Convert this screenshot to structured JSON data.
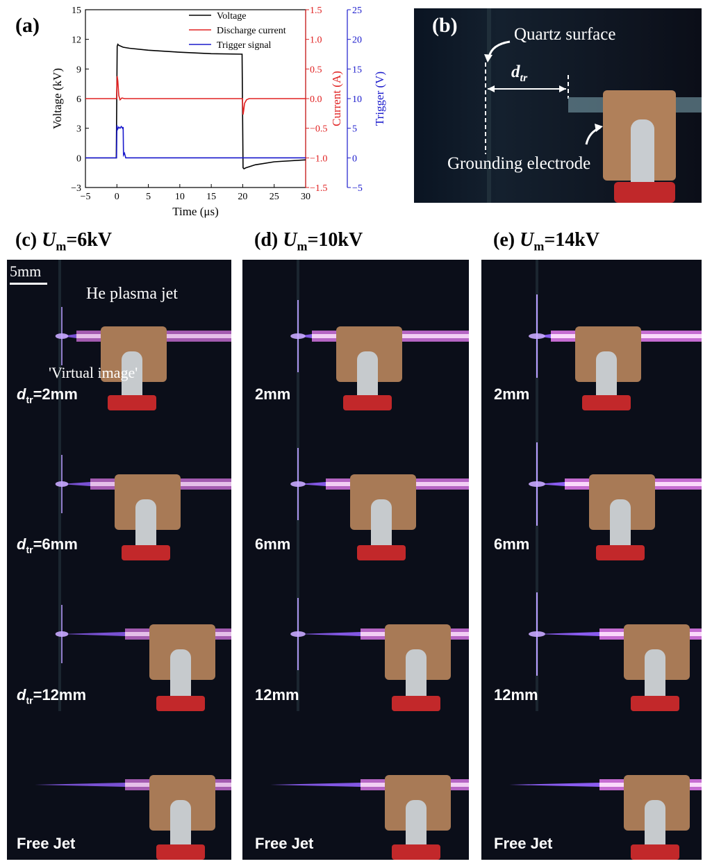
{
  "panels": {
    "a": "(a)",
    "b": "(b)",
    "c": "(c)",
    "d": "(d)",
    "e": "(e)"
  },
  "columns": [
    {
      "prefix": "U",
      "sub": "m",
      "suffix": "=6kV"
    },
    {
      "prefix": "U",
      "sub": "m",
      "suffix": "=10kV"
    },
    {
      "prefix": "U",
      "sub": "m",
      "suffix": "=14kV"
    }
  ],
  "col_c_rows": [
    {
      "d": "d",
      "sub": "tr",
      "val": "=2mm"
    },
    {
      "d": "d",
      "sub": "tr",
      "val": "=6mm"
    },
    {
      "d": "d",
      "sub": "tr",
      "val": "=12mm"
    },
    {
      "d": "",
      "sub": "",
      "val": "Free Jet"
    }
  ],
  "col_rows": [
    "2mm",
    "6mm",
    "12mm",
    "Free Jet"
  ],
  "annotations": {
    "quartz_surface": "Quartz surface",
    "d_tr_main": "d",
    "d_tr_sub": "tr",
    "grounding_electrode": "Grounding electrode",
    "scale_bar": "5mm",
    "he_plasma_jet": "He plasma jet",
    "virtual_image": "'Virtual image'"
  },
  "chart_data": {
    "type": "line",
    "xlabel": "Time (μs)",
    "xlim": [
      -5,
      30
    ],
    "xticks": [
      -5,
      0,
      5,
      10,
      15,
      20,
      25,
      30
    ],
    "axes": [
      {
        "label": "Voltage (kV)",
        "lim": [
          -3,
          15
        ],
        "ticks": [
          -3,
          0,
          3,
          6,
          9,
          12,
          15
        ],
        "color": "#000000"
      },
      {
        "label": "Current (A)",
        "lim": [
          -1.5,
          1.5
        ],
        "ticks": [
          -1.5,
          -1.0,
          -0.5,
          0.0,
          0.5,
          1.0,
          1.5
        ],
        "tick_labels": [
          "-1.5",
          "-1.0",
          "-0.5",
          "0.0",
          "0.5",
          "1.0",
          "1.5"
        ],
        "color": "#e02020"
      },
      {
        "label": "Trigger (V)",
        "lim": [
          -5,
          25
        ],
        "ticks": [
          -5,
          0,
          5,
          10,
          15,
          20,
          25
        ],
        "color": "#1a1acc"
      }
    ],
    "series": [
      {
        "name": "Voltage",
        "color": "#000000",
        "axis": 0,
        "x": [
          -5,
          -0.1,
          0.05,
          0.15,
          0.3,
          1,
          2,
          5,
          10,
          15,
          19.9,
          20.05,
          20.2,
          20.5,
          22,
          25,
          30
        ],
        "y": [
          0,
          0,
          11.3,
          11.5,
          11.4,
          11.2,
          11.1,
          10.9,
          10.7,
          10.55,
          10.5,
          -1.0,
          -1.1,
          -1.0,
          -0.7,
          -0.4,
          -0.2
        ]
      },
      {
        "name": "Discharge current",
        "color": "#e02020",
        "axis": 1,
        "x": [
          -5,
          -0.05,
          0.05,
          0.15,
          0.3,
          0.5,
          0.8,
          1.2,
          19.95,
          20.05,
          20.15,
          20.3,
          20.6,
          21,
          30
        ],
        "y": [
          0,
          0,
          0.38,
          0.3,
          0.05,
          -0.02,
          0.01,
          0,
          0,
          -0.27,
          -0.2,
          -0.08,
          -0.02,
          0,
          0
        ]
      },
      {
        "name": "Trigger signal",
        "color": "#1a1acc",
        "axis": 2,
        "x": [
          -5,
          -0.05,
          0,
          0.1,
          0.3,
          0.5,
          0.7,
          0.9,
          1.0,
          1.05,
          1.2,
          1.4,
          30
        ],
        "y": [
          0,
          0,
          5.5,
          4.8,
          5.2,
          5.0,
          5.3,
          5.0,
          5.2,
          0.5,
          0.8,
          0,
          0
        ]
      }
    ]
  }
}
